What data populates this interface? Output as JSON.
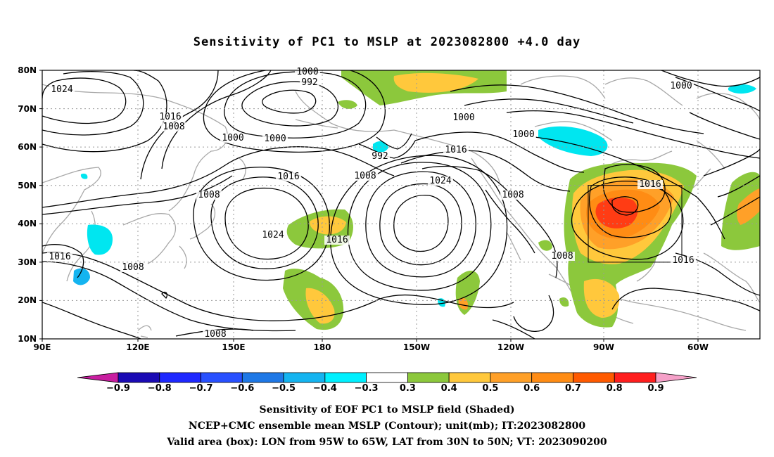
{
  "title": "Sensitivity of PC1 to MSLP at 2023082800 +4.0 day",
  "lat_ticks": [
    "80N",
    "70N",
    "60N",
    "50N",
    "40N",
    "30N",
    "20N",
    "10N"
  ],
  "lon_ticks": [
    "90E",
    "120E",
    "150E",
    "180",
    "150W",
    "120W",
    "90W",
    "60W"
  ],
  "contour_labels": [
    {
      "text": "1000",
      "id": "c1000a"
    },
    {
      "text": "992",
      "id": "c992a"
    },
    {
      "text": "1024",
      "id": "c1024a"
    },
    {
      "text": "1016",
      "id": "c1016a"
    },
    {
      "text": "1008",
      "id": "c1008a"
    },
    {
      "text": "1000",
      "id": "c1000b"
    },
    {
      "text": "1000",
      "id": "c1000c"
    },
    {
      "text": "992",
      "id": "c992b"
    },
    {
      "text": "1016",
      "id": "c1016b"
    },
    {
      "text": "1008",
      "id": "c1008b"
    },
    {
      "text": "1008",
      "id": "c1008c"
    },
    {
      "text": "1024",
      "id": "c1024b"
    },
    {
      "text": "1016",
      "id": "c1016c"
    },
    {
      "text": "1024",
      "id": "c1024c"
    },
    {
      "text": "1000",
      "id": "c1000d"
    },
    {
      "text": "1008",
      "id": "c1008d"
    },
    {
      "text": "1016",
      "id": "c1016d"
    },
    {
      "text": "1000",
      "id": "c1000e"
    },
    {
      "text": "1000",
      "id": "c1000f"
    },
    {
      "text": "1016",
      "id": "c1016e"
    },
    {
      "text": "1008",
      "id": "c1008e"
    },
    {
      "text": "1016",
      "id": "c1016f"
    },
    {
      "text": "1008",
      "id": "c1008f"
    },
    {
      "text": "1016",
      "id": "c1016g"
    },
    {
      "text": "1008",
      "id": "c1008g"
    }
  ],
  "colorbar": {
    "labels": [
      "−0.9",
      "−0.8",
      "−0.7",
      "−0.6",
      "−0.5",
      "−0.4",
      "−0.3",
      "0.3",
      "0.4",
      "0.5",
      "0.6",
      "0.7",
      "0.8",
      "0.9"
    ],
    "colors": [
      "#c81ea0",
      "#1a0ab4",
      "#1e28ff",
      "#2850ff",
      "#1e78e6",
      "#14b4f0",
      "#00f0ff",
      "#ffffff",
      "#8cc83c",
      "#ffc83c",
      "#ffa028",
      "#ff8c14",
      "#ff5a00",
      "#ff1e1e",
      "#f5a0c8"
    ]
  },
  "shading_colors": {
    "green": "#8cc83c",
    "yellow": "#ffc83c",
    "orange": "#ffa028",
    "darkorange": "#ff8c14",
    "red": "#ff3c14",
    "cyan": "#00e6f0",
    "lightblue": "#14b4f0"
  },
  "caption": {
    "line1": "Sensitivity of EOF PC1 to MSLP field (Shaded)",
    "line2": "NCEP+CMC ensemble mean MSLP (Contour); unit(mb); IT:2023082800",
    "line3": "Valid area (box): LON from 95W to 65W, LAT from 30N to 50N; VT: 2023090200"
  }
}
